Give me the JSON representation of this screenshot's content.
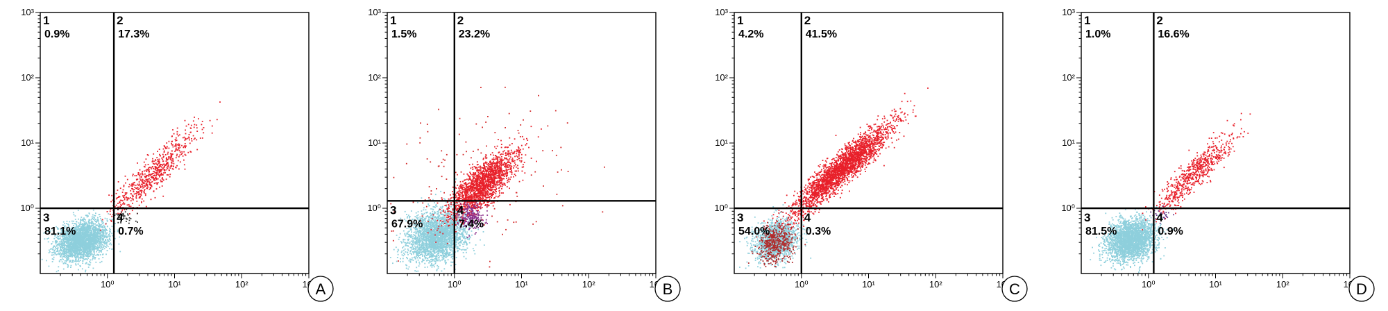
{
  "chart_data": [
    {
      "type": "scatter",
      "panel_label": "A",
      "xscale": "log",
      "yscale": "log",
      "xlim": [
        0.1,
        1000
      ],
      "ylim": [
        0.1,
        1000
      ],
      "x_ticks": [
        "10⁰",
        "10¹",
        "10²",
        "10³"
      ],
      "y_ticks": [
        "10⁰",
        "10¹",
        "10²",
        "10³"
      ],
      "gate": {
        "x": 1.25,
        "y": 1.0
      },
      "quadrants": [
        {
          "id": "1",
          "percent": "0.9%"
        },
        {
          "id": "2",
          "percent": "17.3%"
        },
        {
          "id": "3",
          "percent": "81.1%"
        },
        {
          "id": "4",
          "percent": "0.7%"
        }
      ],
      "populations": [
        {
          "color": "#8ecfdc",
          "count": 2600,
          "center": [
            0.42,
            0.32
          ],
          "spread": [
            0.19,
            0.15
          ],
          "corr": 0.25
        },
        {
          "color": "#e8202a",
          "count": 650,
          "center": [
            5.0,
            3.5
          ],
          "spread": [
            0.32,
            0.32
          ],
          "corr": 0.9
        },
        {
          "color": "#333333",
          "count": 40,
          "center": [
            1.8,
            0.75
          ],
          "spread": [
            0.1,
            0.06
          ],
          "corr": 0.0
        }
      ]
    },
    {
      "type": "scatter",
      "panel_label": "B",
      "xscale": "log",
      "yscale": "log",
      "xlim": [
        0.1,
        1000
      ],
      "ylim": [
        0.1,
        1000
      ],
      "x_ticks": [
        "10⁰",
        "10¹",
        "10²",
        "10³"
      ],
      "y_ticks": [
        "10⁰",
        "10¹",
        "10²",
        "10³"
      ],
      "gate": {
        "x": 1.0,
        "y": 1.3
      },
      "quadrants": [
        {
          "id": "1",
          "percent": "1.5%"
        },
        {
          "id": "2",
          "percent": "23.2%"
        },
        {
          "id": "3",
          "percent": "67.9%"
        },
        {
          "id": "4",
          "percent": "7.4%"
        }
      ],
      "populations": [
        {
          "color": "#8ecfdc",
          "count": 2600,
          "center": [
            0.55,
            0.38
          ],
          "spread": [
            0.22,
            0.2
          ],
          "corr": 0.2
        },
        {
          "color": "#e8202a",
          "count": 1800,
          "center": [
            2.6,
            2.3
          ],
          "spread": [
            0.25,
            0.25
          ],
          "corr": 0.75
        },
        {
          "color": "#8b2f8b",
          "count": 220,
          "center": [
            1.8,
            0.75
          ],
          "spread": [
            0.1,
            0.1
          ],
          "corr": 0.0
        },
        {
          "color": "#d42a2a",
          "count": 160,
          "center": [
            2.0,
            3.0
          ],
          "spread": [
            0.7,
            0.65
          ],
          "corr": 0.3
        }
      ]
    },
    {
      "type": "scatter",
      "panel_label": "C",
      "xscale": "log",
      "yscale": "log",
      "xlim": [
        0.1,
        1000
      ],
      "ylim": [
        0.1,
        1000
      ],
      "x_ticks": [
        "10⁰",
        "10¹",
        "10²",
        "10³"
      ],
      "y_ticks": [
        "10⁰",
        "10¹",
        "10²",
        "10³"
      ],
      "gate": {
        "x": 1.0,
        "y": 1.0
      },
      "quadrants": [
        {
          "id": "1",
          "percent": "4.2%"
        },
        {
          "id": "2",
          "percent": "41.5%"
        },
        {
          "id": "3",
          "percent": "54.0%"
        },
        {
          "id": "4",
          "percent": "0.3%"
        }
      ],
      "populations": [
        {
          "color": "#8ecfdc",
          "count": 1500,
          "center": [
            0.42,
            0.32
          ],
          "spread": [
            0.16,
            0.16
          ],
          "corr": 0.2
        },
        {
          "color": "#e8202a",
          "count": 2600,
          "center": [
            4.0,
            4.0
          ],
          "spread": [
            0.36,
            0.34
          ],
          "corr": 0.92
        },
        {
          "color": "#b02a2a",
          "count": 450,
          "center": [
            0.42,
            0.3
          ],
          "spread": [
            0.14,
            0.15
          ],
          "corr": 0.2
        }
      ]
    },
    {
      "type": "scatter",
      "panel_label": "D",
      "xscale": "log",
      "yscale": "log",
      "xlim": [
        0.1,
        1000
      ],
      "ylim": [
        0.1,
        1000
      ],
      "x_ticks": [
        "10⁰",
        "10¹",
        "10²",
        "10³"
      ],
      "y_ticks": [
        "10⁰",
        "10¹",
        "10²",
        "10³"
      ],
      "gate": {
        "x": 1.2,
        "y": 1.0
      },
      "quadrants": [
        {
          "id": "1",
          "percent": "1.0%"
        },
        {
          "id": "2",
          "percent": "16.6%"
        },
        {
          "id": "3",
          "percent": "81.5%"
        },
        {
          "id": "4",
          "percent": "0.9%"
        }
      ],
      "populations": [
        {
          "color": "#8ecfdc",
          "count": 2600,
          "center": [
            0.55,
            0.33
          ],
          "spread": [
            0.18,
            0.16
          ],
          "corr": 0.2
        },
        {
          "color": "#e8202a",
          "count": 650,
          "center": [
            5.0,
            3.5
          ],
          "spread": [
            0.3,
            0.3
          ],
          "corr": 0.9
        },
        {
          "color": "#6b3a8b",
          "count": 30,
          "center": [
            1.6,
            0.8
          ],
          "spread": [
            0.07,
            0.05
          ],
          "corr": 0.0
        }
      ]
    }
  ]
}
